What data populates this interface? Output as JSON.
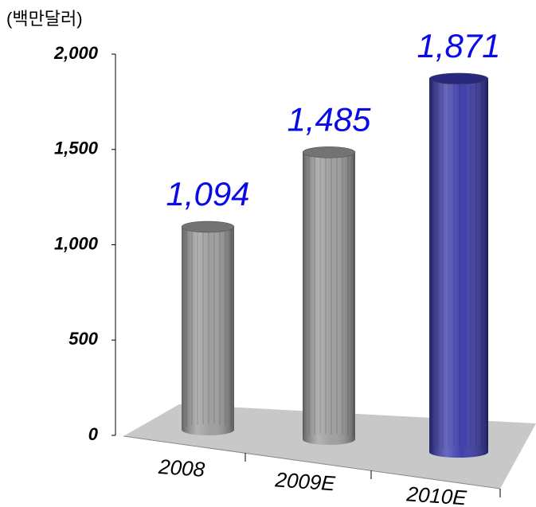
{
  "chart_data": {
    "type": "bar",
    "y_label": "(백만달러)",
    "categories": [
      "2008",
      "2009E",
      "2010E"
    ],
    "values": [
      1094,
      1485,
      1871
    ],
    "value_labels": [
      "1,094",
      "1,485",
      "1,871"
    ],
    "colors": [
      "#9a9a9a",
      "#9a9a9a",
      "#3636a8"
    ],
    "ylim": [
      0,
      2000
    ],
    "yticks": [
      0,
      500,
      {
        "value": 1000,
        "label": "1,000"
      },
      {
        "value": 1500,
        "label": "1,500"
      },
      {
        "value": 2000,
        "label": "2,000"
      }
    ]
  }
}
